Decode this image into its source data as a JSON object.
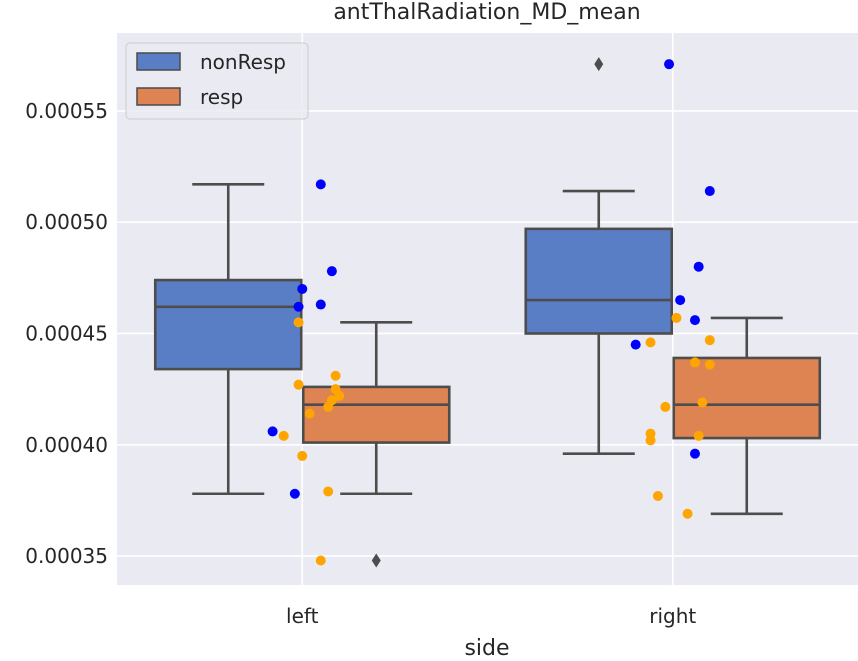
{
  "chart_data": {
    "type": "box",
    "title": "antThalRadiation_MD_mean",
    "xlabel": "side",
    "ylabel": "",
    "categories": [
      "left",
      "right"
    ],
    "ylim": [
      0.000337,
      0.000585
    ],
    "yticks": [
      0.00035,
      0.0004,
      0.00045,
      0.0005,
      0.00055
    ],
    "ytick_labels": [
      "0.00035",
      "0.00040",
      "0.00045",
      "0.00050",
      "0.00055"
    ],
    "grid": true,
    "legend_position": "top-left",
    "series": [
      {
        "name": "nonResp",
        "color": "#5A7EC5",
        "point_color": "#0000FF",
        "boxes": [
          {
            "category": "left",
            "q1": 0.000434,
            "median": 0.000462,
            "q3": 0.000474,
            "whisker_low": 0.000378,
            "whisker_high": 0.000517,
            "outliers": []
          },
          {
            "category": "right",
            "q1": 0.00045,
            "median": 0.000465,
            "q3": 0.000497,
            "whisker_low": 0.000396,
            "whisker_high": 0.000514,
            "outliers": [
              0.000571
            ]
          }
        ],
        "points": [
          {
            "category": "left",
            "y": 0.000517,
            "jitter": 0.05
          },
          {
            "category": "left",
            "y": 0.000478,
            "jitter": 0.08
          },
          {
            "category": "left",
            "y": 0.00047,
            "jitter": 0.0
          },
          {
            "category": "left",
            "y": 0.000463,
            "jitter": 0.05
          },
          {
            "category": "left",
            "y": 0.000462,
            "jitter": -0.01
          },
          {
            "category": "left",
            "y": 0.000406,
            "jitter": -0.08
          },
          {
            "category": "left",
            "y": 0.000378,
            "jitter": -0.02
          },
          {
            "category": "right",
            "y": 0.000571,
            "jitter": -0.01
          },
          {
            "category": "right",
            "y": 0.000514,
            "jitter": 0.1
          },
          {
            "category": "right",
            "y": 0.00048,
            "jitter": 0.07
          },
          {
            "category": "right",
            "y": 0.000465,
            "jitter": 0.02
          },
          {
            "category": "right",
            "y": 0.000456,
            "jitter": 0.06
          },
          {
            "category": "right",
            "y": 0.000445,
            "jitter": -0.1
          },
          {
            "category": "right",
            "y": 0.000396,
            "jitter": 0.06
          }
        ]
      },
      {
        "name": "resp",
        "color": "#DD8452",
        "point_color": "#FFA500",
        "boxes": [
          {
            "category": "left",
            "q1": 0.000401,
            "median": 0.000418,
            "q3": 0.000426,
            "whisker_low": 0.000378,
            "whisker_high": 0.000455,
            "outliers": [
              0.000348
            ]
          },
          {
            "category": "right",
            "q1": 0.000403,
            "median": 0.000418,
            "q3": 0.000439,
            "whisker_low": 0.000369,
            "whisker_high": 0.000457,
            "outliers": []
          }
        ],
        "points": [
          {
            "category": "left",
            "y": 0.000455,
            "jitter": -0.01
          },
          {
            "category": "left",
            "y": 0.000431,
            "jitter": 0.09
          },
          {
            "category": "left",
            "y": 0.000427,
            "jitter": -0.01
          },
          {
            "category": "left",
            "y": 0.000425,
            "jitter": 0.09
          },
          {
            "category": "left",
            "y": 0.000422,
            "jitter": 0.1
          },
          {
            "category": "left",
            "y": 0.00042,
            "jitter": 0.08
          },
          {
            "category": "left",
            "y": 0.000417,
            "jitter": 0.07
          },
          {
            "category": "left",
            "y": 0.000414,
            "jitter": 0.02
          },
          {
            "category": "left",
            "y": 0.000404,
            "jitter": -0.05
          },
          {
            "category": "left",
            "y": 0.000395,
            "jitter": -0.0
          },
          {
            "category": "left",
            "y": 0.000379,
            "jitter": 0.07
          },
          {
            "category": "left",
            "y": 0.000348,
            "jitter": 0.05
          },
          {
            "category": "right",
            "y": 0.000457,
            "jitter": 0.01
          },
          {
            "category": "right",
            "y": 0.000447,
            "jitter": 0.1
          },
          {
            "category": "right",
            "y": 0.000446,
            "jitter": -0.06
          },
          {
            "category": "right",
            "y": 0.000437,
            "jitter": 0.06
          },
          {
            "category": "right",
            "y": 0.000436,
            "jitter": 0.1
          },
          {
            "category": "right",
            "y": 0.000419,
            "jitter": 0.08
          },
          {
            "category": "right",
            "y": 0.000417,
            "jitter": -0.02
          },
          {
            "category": "right",
            "y": 0.000405,
            "jitter": -0.06
          },
          {
            "category": "right",
            "y": 0.000404,
            "jitter": 0.07
          },
          {
            "category": "right",
            "y": 0.000402,
            "jitter": -0.06
          },
          {
            "category": "right",
            "y": 0.000377,
            "jitter": -0.04
          },
          {
            "category": "right",
            "y": 0.000369,
            "jitter": 0.04
          }
        ]
      }
    ]
  }
}
